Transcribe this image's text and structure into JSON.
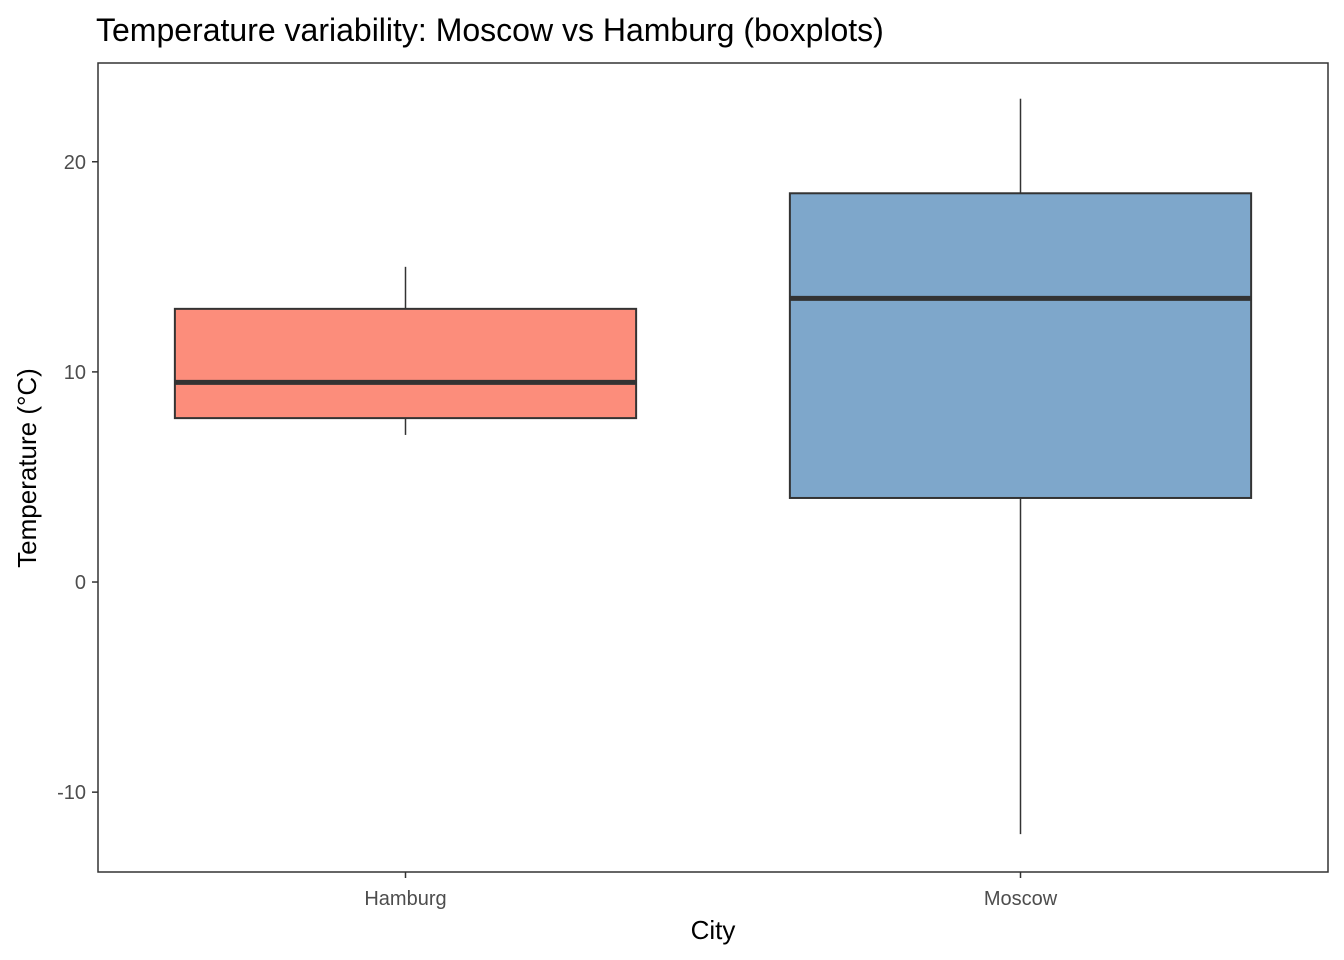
{
  "chart_data": {
    "type": "boxplot",
    "title": "Temperature variability: Moscow vs Hamburg (boxplots)",
    "xlabel": "City",
    "ylabel": "Temperature (°C)",
    "ylim": [
      -13.8,
      24.7
    ],
    "yticks": [
      -10,
      0,
      10,
      20
    ],
    "grid": false,
    "categories": [
      "Hamburg",
      "Moscow"
    ],
    "boxes": [
      {
        "category": "Hamburg",
        "whisker_low": 7.0,
        "q1": 7.8,
        "median": 9.5,
        "q3": 13.0,
        "whisker_high": 15.0,
        "color": "#FC8D7B"
      },
      {
        "category": "Moscow",
        "whisker_low": -12.0,
        "q1": 4.0,
        "median": 13.5,
        "q3": 18.5,
        "whisker_high": 23.0,
        "color": "#7EA7CB"
      }
    ],
    "colors": {
      "outline": "#333333",
      "median": "#333333",
      "panel_border": "#333333",
      "tick_label": "#4d4d4d"
    }
  }
}
